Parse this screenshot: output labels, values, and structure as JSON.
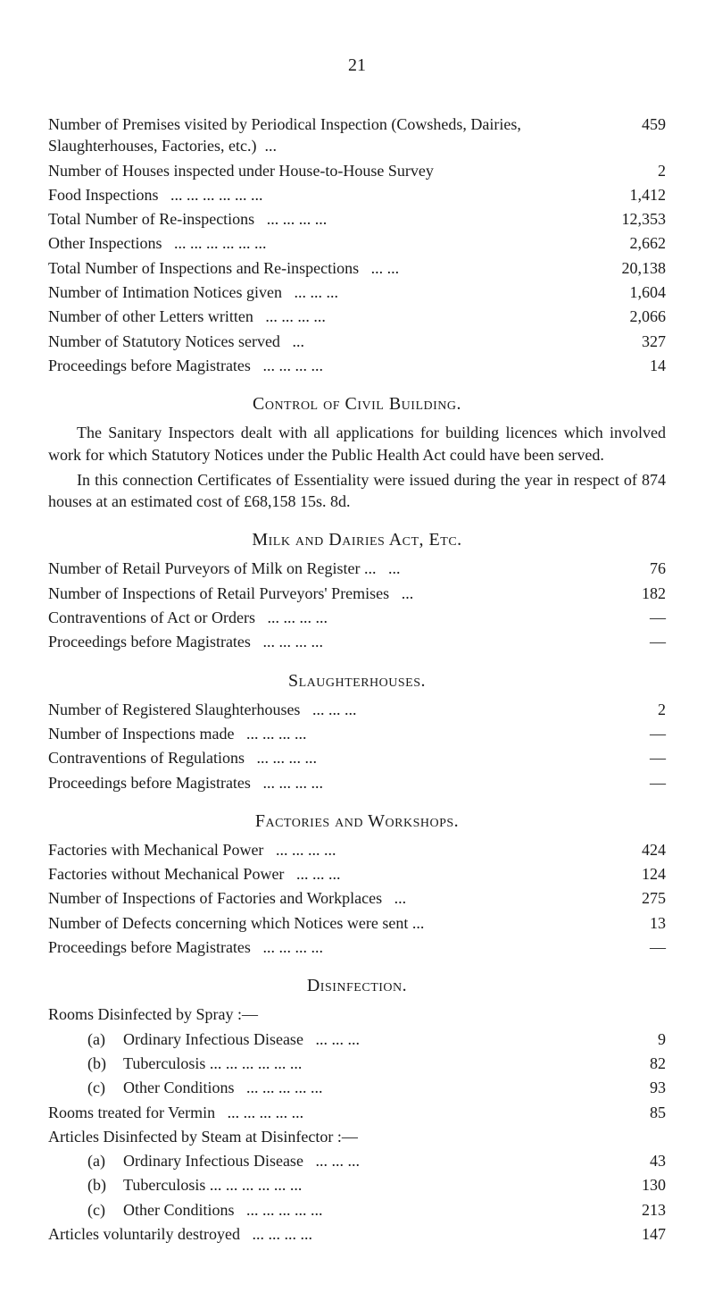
{
  "page_number": "21",
  "block1": {
    "items": [
      {
        "label": "Number of Premises visited by Periodical Inspection (Cow­sheds, Dairies, Slaughterhouses, Factories, etc.)",
        "dots": "...",
        "value": "459",
        "wrap": true
      },
      {
        "label": "Number of Houses inspected under House-to-House Survey",
        "dots": "",
        "value": "2"
      },
      {
        "label": "Food Inspections",
        "dots": "...   ...   ...   ...   ...   ...",
        "value": "1,412"
      },
      {
        "label": "Total Number of Re-inspections",
        "dots": "...   ...   ...   ...",
        "value": "12,353"
      },
      {
        "label": "Other Inspections",
        "dots": "...   ...   ...   ...   ...   ...",
        "value": "2,662"
      },
      {
        "label": "Total Number of Inspections and Re-inspections",
        "dots": "...   ...",
        "value": "20,138"
      },
      {
        "label": "Number of Intimation Notices given",
        "dots": "...   ...   ...",
        "value": "1,604"
      },
      {
        "label": "Number of other Letters written",
        "dots": "...   ...   ...   ...",
        "value": "2,066"
      },
      {
        "label": "Number of Statutory Notices served",
        "dots": "...",
        "value": "327"
      },
      {
        "label": "Proceedings before Magistrates",
        "dots": "...   ...   ...   ...",
        "value": "14"
      }
    ]
  },
  "civil_building": {
    "heading": "Control of Civil Building.",
    "para1": "The Sanitary Inspectors dealt with all applications for building licences which involved work for which Statutory Notices under the Public Health Act could have been served.",
    "para2": "In this connection Certificates of Essentiality were issued during the year in respect of 874 houses at an estimated cost of £68,158 15s. 8d."
  },
  "milk": {
    "heading": "Milk and Dairies Act, Etc.",
    "items": [
      {
        "label": "Number of Retail Purveyors of Milk on Register ...",
        "dots": "...",
        "value": "76"
      },
      {
        "label": "Number of Inspections of Retail Purveyors' Premises",
        "dots": "...",
        "value": "182"
      },
      {
        "label": "Contraventions of Act or Orders",
        "dots": "...   ...   ...   ...",
        "value": "—"
      },
      {
        "label": "Proceedings before Magistrates",
        "dots": "...   ...   ...   ...",
        "value": "—"
      }
    ]
  },
  "slaughter": {
    "heading": "Slaughterhouses.",
    "items": [
      {
        "label": "Number of Registered Slaughterhouses",
        "dots": "...   ...   ...",
        "value": "2"
      },
      {
        "label": "Number of Inspections made",
        "dots": "...   ...   ...   ...",
        "value": "—"
      },
      {
        "label": "Contraventions of Regulations",
        "dots": "...   ...   ...   ...",
        "value": "—"
      },
      {
        "label": "Proceedings before Magistrates",
        "dots": "...   ...   ...   ...",
        "value": "—"
      }
    ]
  },
  "factories": {
    "heading": "Factories and Workshops.",
    "items": [
      {
        "label": "Factories with Mechanical Power",
        "dots": "...   ...   ...   ...",
        "value": "424"
      },
      {
        "label": "Factories without Mechanical Power",
        "dots": "...   ...   ...",
        "value": "124"
      },
      {
        "label": "Number of Inspections of Factories and Workplaces",
        "dots": "...",
        "value": "275"
      },
      {
        "label": "Number of Defects concerning which Notices were sent ...",
        "dots": "",
        "value": "13"
      },
      {
        "label": "Proceedings before Magistrates",
        "dots": "...   ...   ...   ...",
        "value": "—"
      }
    ]
  },
  "disinfection": {
    "heading": "Disinfection.",
    "intro1": "Rooms Disinfected by Spray :—",
    "sub1": [
      {
        "marker": "(a)",
        "label": "Ordinary Infectious Disease",
        "dots": "...   ...   ...",
        "value": "9"
      },
      {
        "marker": "(b)",
        "label": "Tuberculosis ...",
        "dots": " ...   ...   ...   ...   ...",
        "value": "82"
      },
      {
        "marker": "(c)",
        "label": "Other Conditions",
        "dots": "...   ...   ...   ...   ...",
        "value": "93"
      }
    ],
    "row_vermin": {
      "label": "Rooms treated for Vermin",
      "dots": "...   ...   ...   ...   ...",
      "value": "85"
    },
    "intro2": "Articles Disinfected by Steam at Disinfector :—",
    "sub2": [
      {
        "marker": "(a)",
        "label": "Ordinary Infectious Disease",
        "dots": "...   ...   ...",
        "value": "43"
      },
      {
        "marker": "(b)",
        "label": "Tuberculosis ...",
        "dots": " ...   ...   ...   ...   ...",
        "value": "130"
      },
      {
        "marker": "(c)",
        "label": "Other Conditions",
        "dots": "...   ...   ...   ...   ...",
        "value": "213"
      }
    ],
    "row_voluntary": {
      "label": "Articles voluntarily destroyed",
      "dots": "...   ...   ...   ...",
      "value": "147"
    }
  }
}
